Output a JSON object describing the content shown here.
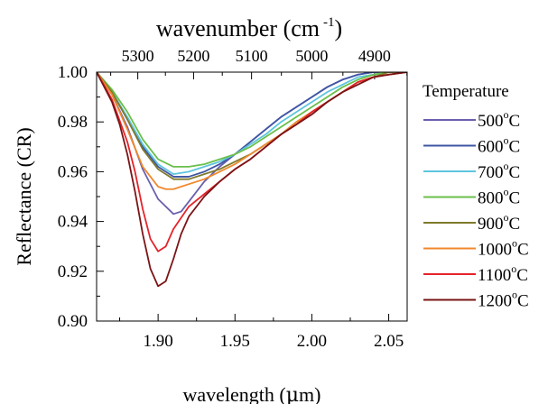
{
  "chart_data": {
    "type": "line",
    "xlabel": "wavelength (μm)",
    "xlabel_parts": [
      "wavelength (",
      "μ",
      "m)"
    ],
    "x2label_base": "wavenumber (cm",
    "x2label_sup": "-1",
    "x2label_close": ")",
    "ylabel": "Reflectance (CR)",
    "xlim": [
      1.86,
      2.062
    ],
    "ylim": [
      0.9,
      1.0
    ],
    "xticks": [
      "1.90",
      "1.95",
      "2.00",
      "2.05"
    ],
    "xtick_values": [
      1.9,
      1.95,
      2.0,
      2.05
    ],
    "yticks": [
      "0.90",
      "0.92",
      "0.94",
      "0.96",
      "0.98",
      "1.00"
    ],
    "ytick_values": [
      0.9,
      0.92,
      0.94,
      0.96,
      0.98,
      1.0
    ],
    "x2ticks": [
      "5300",
      "5200",
      "5100",
      "5000",
      "4900"
    ],
    "x2tick_values": [
      5300,
      5200,
      5100,
      5000,
      4900
    ],
    "legend_title": "Temperature",
    "legend_position": "right",
    "series": [
      {
        "name": "500",
        "unit": "o",
        "unit_suffix": "C",
        "color": "#6a5fae",
        "x": [
          1.86,
          1.87,
          1.88,
          1.89,
          1.9,
          1.91,
          1.915,
          1.92,
          1.93,
          1.94,
          1.95,
          1.96,
          1.97,
          1.98,
          1.99,
          2.0,
          2.01,
          2.02,
          2.03,
          2.04,
          2.05,
          2.062
        ],
        "y": [
          1.0,
          0.991,
          0.978,
          0.961,
          0.949,
          0.943,
          0.944,
          0.948,
          0.956,
          0.962,
          0.967,
          0.972,
          0.977,
          0.982,
          0.986,
          0.99,
          0.994,
          0.997,
          0.999,
          1.0,
          1.0,
          1.0
        ]
      },
      {
        "name": "600",
        "unit": "o",
        "unit_suffix": "C",
        "color": "#3f56a5",
        "x": [
          1.86,
          1.87,
          1.88,
          1.89,
          1.9,
          1.91,
          1.92,
          1.93,
          1.94,
          1.95,
          1.96,
          1.97,
          1.98,
          1.99,
          2.0,
          2.01,
          2.02,
          2.03,
          2.04,
          2.05,
          2.062
        ],
        "y": [
          1.0,
          0.992,
          0.981,
          0.97,
          0.962,
          0.958,
          0.958,
          0.96,
          0.963,
          0.967,
          0.972,
          0.977,
          0.982,
          0.986,
          0.99,
          0.994,
          0.997,
          0.999,
          1.0,
          1.0,
          1.0
        ]
      },
      {
        "name": "700",
        "unit": "o",
        "unit_suffix": "C",
        "color": "#5ec5dd",
        "x": [
          1.86,
          1.87,
          1.88,
          1.89,
          1.9,
          1.91,
          1.92,
          1.93,
          1.94,
          1.95,
          1.96,
          1.97,
          1.98,
          1.99,
          2.0,
          2.01,
          2.02,
          2.03,
          2.04,
          2.05,
          2.062
        ],
        "y": [
          1.0,
          0.992,
          0.982,
          0.971,
          0.963,
          0.959,
          0.96,
          0.962,
          0.964,
          0.967,
          0.971,
          0.975,
          0.98,
          0.984,
          0.988,
          0.992,
          0.995,
          0.998,
          0.999,
          1.0,
          1.0
        ]
      },
      {
        "name": "800",
        "unit": "o",
        "unit_suffix": "C",
        "color": "#6abf4b",
        "x": [
          1.86,
          1.87,
          1.88,
          1.89,
          1.9,
          1.91,
          1.92,
          1.93,
          1.94,
          1.95,
          1.96,
          1.97,
          1.98,
          1.99,
          2.0,
          2.01,
          2.02,
          2.03,
          2.04,
          2.05,
          2.062
        ],
        "y": [
          1.0,
          0.993,
          0.984,
          0.973,
          0.965,
          0.962,
          0.962,
          0.963,
          0.965,
          0.967,
          0.97,
          0.974,
          0.978,
          0.982,
          0.986,
          0.99,
          0.994,
          0.997,
          0.999,
          1.0,
          1.0
        ]
      },
      {
        "name": "900",
        "unit": "o",
        "unit_suffix": "C",
        "color": "#7f7a2b",
        "x": [
          1.86,
          1.87,
          1.88,
          1.89,
          1.9,
          1.91,
          1.92,
          1.93,
          1.94,
          1.95,
          1.96,
          1.97,
          1.98,
          1.99,
          2.0,
          2.01,
          2.02,
          2.03,
          2.04,
          2.05,
          2.062
        ],
        "y": [
          1.0,
          0.992,
          0.981,
          0.969,
          0.961,
          0.957,
          0.957,
          0.959,
          0.961,
          0.964,
          0.967,
          0.971,
          0.975,
          0.98,
          0.984,
          0.988,
          0.992,
          0.996,
          0.998,
          1.0,
          1.0
        ]
      },
      {
        "name": "1000",
        "unit": "o",
        "unit_suffix": "C",
        "color": "#f0882c",
        "x": [
          1.86,
          1.87,
          1.88,
          1.89,
          1.9,
          1.905,
          1.91,
          1.92,
          1.93,
          1.94,
          1.95,
          1.96,
          1.97,
          1.98,
          1.99,
          2.0,
          2.01,
          2.02,
          2.03,
          2.04,
          2.05,
          2.062
        ],
        "y": [
          1.0,
          0.991,
          0.977,
          0.962,
          0.954,
          0.953,
          0.953,
          0.955,
          0.957,
          0.96,
          0.963,
          0.967,
          0.971,
          0.975,
          0.98,
          0.984,
          0.988,
          0.992,
          0.996,
          0.998,
          0.999,
          1.0
        ]
      },
      {
        "name": "1100",
        "unit": "o",
        "unit_suffix": "C",
        "color": "#e5232a",
        "x": [
          1.86,
          1.87,
          1.88,
          1.885,
          1.89,
          1.895,
          1.9,
          1.905,
          1.91,
          1.92,
          1.93,
          1.94,
          1.95,
          1.96,
          1.97,
          1.98,
          1.99,
          2.0,
          2.01,
          2.02,
          2.03,
          2.04,
          2.05,
          2.062
        ],
        "y": [
          1.0,
          0.989,
          0.972,
          0.96,
          0.945,
          0.933,
          0.928,
          0.93,
          0.937,
          0.946,
          0.951,
          0.956,
          0.961,
          0.965,
          0.97,
          0.975,
          0.979,
          0.984,
          0.988,
          0.992,
          0.996,
          0.998,
          0.999,
          1.0
        ]
      },
      {
        "name": "1200",
        "unit": "o",
        "unit_suffix": "C",
        "color": "#7b1416",
        "x": [
          1.86,
          1.87,
          1.875,
          1.88,
          1.885,
          1.89,
          1.895,
          1.9,
          1.905,
          1.91,
          1.915,
          1.92,
          1.93,
          1.94,
          1.95,
          1.96,
          1.97,
          1.98,
          1.99,
          2.0,
          2.01,
          2.02,
          2.03,
          2.04,
          2.05,
          2.062
        ],
        "y": [
          1.0,
          0.988,
          0.979,
          0.967,
          0.952,
          0.935,
          0.921,
          0.914,
          0.916,
          0.925,
          0.935,
          0.942,
          0.95,
          0.956,
          0.961,
          0.965,
          0.97,
          0.975,
          0.979,
          0.983,
          0.988,
          0.992,
          0.995,
          0.998,
          0.999,
          1.0
        ]
      }
    ]
  }
}
